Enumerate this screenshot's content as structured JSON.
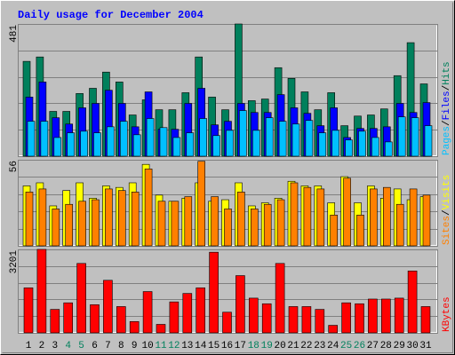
{
  "title": "Daily usage for December 2004",
  "chart_data": [
    {
      "type": "bar",
      "ylim": [
        0,
        481
      ],
      "yticks": [
        481
      ],
      "series": [
        {
          "name": "Hits",
          "color": "#00805C",
          "values": [
            345,
            361,
            163,
            163,
            228,
            247,
            306,
            270,
            150,
            205,
            169,
            169,
            231,
            361,
            215,
            169,
            481,
            202,
            208,
            322,
            283,
            234,
            169,
            231,
            111,
            146,
            150,
            172,
            293,
            413,
            263
          ]
        },
        {
          "name": "Files",
          "color": "#0000FF",
          "values": [
            215,
            270,
            140,
            117,
            176,
            192,
            240,
            192,
            107,
            234,
            98,
            98,
            192,
            247,
            114,
            127,
            192,
            159,
            159,
            224,
            176,
            156,
            111,
            176,
            68,
            101,
            101,
            107,
            192,
            159,
            195
          ]
        },
        {
          "name": "Pages",
          "color": "#00C0FF",
          "values": [
            127,
            127,
            68,
            85,
            91,
            85,
            107,
            127,
            78,
            137,
            104,
            68,
            85,
            137,
            75,
            94,
            166,
            94,
            140,
            127,
            117,
            130,
            85,
            94,
            59,
            91,
            68,
            52,
            143,
            140,
            111
          ]
        }
      ]
    },
    {
      "type": "bar",
      "ylim": [
        0,
        56
      ],
      "yticks": [
        56
      ],
      "series": [
        {
          "name": "Visits",
          "color": "#FFFF00",
          "values": [
            39,
            41,
            26,
            36,
            41,
            31,
            39,
            38,
            41,
            53,
            33,
            29,
            31,
            41,
            29,
            30,
            41,
            26,
            28,
            31,
            42,
            39,
            39,
            28,
            45,
            28,
            39,
            31,
            37,
            30,
            32
          ]
        },
        {
          "name": "Sites",
          "color": "#FF8000",
          "values": [
            35,
            37,
            24,
            27,
            29,
            30,
            37,
            36,
            35,
            50,
            29,
            29,
            32,
            55,
            32,
            24,
            35,
            24,
            27,
            30,
            41,
            38,
            37,
            20,
            44,
            20,
            37,
            38,
            27,
            37,
            33
          ]
        }
      ]
    },
    {
      "type": "bar",
      "ylim": [
        0,
        3201
      ],
      "yticks": [
        3201
      ],
      "categories": [
        "1",
        "2",
        "3",
        "4",
        "5",
        "6",
        "7",
        "8",
        "9",
        "10",
        "11",
        "12",
        "13",
        "14",
        "15",
        "16",
        "17",
        "18",
        "19",
        "20",
        "21",
        "22",
        "23",
        "24",
        "25",
        "26",
        "27",
        "28",
        "29",
        "30",
        "31"
      ],
      "label_colors": [
        "#000000",
        "#000000",
        "#000000",
        "#00805C",
        "#00805C",
        "#000000",
        "#000000",
        "#000000",
        "#000000",
        "#000000",
        "#00805C",
        "#00805C",
        "#000000",
        "#000000",
        "#000000",
        "#000000",
        "#000000",
        "#00805C",
        "#00805C",
        "#000000",
        "#000000",
        "#000000",
        "#000000",
        "#000000",
        "#00805C",
        "#00805C",
        "#000000",
        "#000000",
        "#000000",
        "#000000",
        "#000000"
      ],
      "series": [
        {
          "name": "KBytes",
          "color": "#FF0000",
          "values": [
            1727,
            3201,
            899,
            1151,
            2662,
            1079,
            2015,
            1007,
            432,
            1583,
            324,
            1187,
            1511,
            1727,
            3093,
            791,
            2195,
            1331,
            1115,
            2662,
            1007,
            1007,
            899,
            288,
            1151,
            1115,
            1295,
            1295,
            1331,
            2374,
            1007
          ]
        }
      ]
    }
  ]
}
